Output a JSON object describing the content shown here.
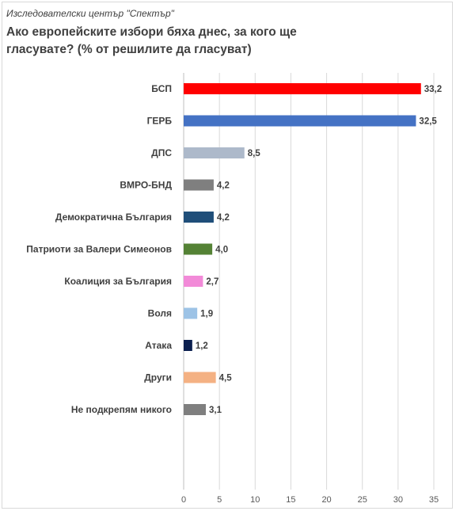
{
  "header": {
    "source": "Изследователски център \"Спектър\"",
    "title": "Ако европейските избори бяха днес, за кого ще гласувате? (% от решилите да гласуват)"
  },
  "chart_data": {
    "type": "bar",
    "orientation": "horizontal",
    "title": "Ако европейските избори бяха днес, за кого ще гласувате? (% от решилите да гласуват)",
    "categories": [
      "БСП",
      "ГЕРБ",
      "ДПС",
      "ВМРО-БНД",
      "Демократична България",
      "Патриоти за Валери Симеонов",
      "Коалиция за България",
      "Воля",
      "Атака",
      "Други",
      "Не подкрепям никого"
    ],
    "values": [
      33.2,
      32.5,
      8.5,
      4.2,
      4.2,
      4.0,
      2.7,
      1.9,
      1.2,
      4.5,
      3.1
    ],
    "value_labels": [
      "33,2",
      "32,5",
      "8,5",
      "4,2",
      "4,2",
      "4,0",
      "2,7",
      "1,9",
      "1,2",
      "4,5",
      "3,1"
    ],
    "colors": [
      "#ff0000",
      "#4472c4",
      "#adb9ca",
      "#7f7f7f",
      "#1f4e79",
      "#548235",
      "#f28ad8",
      "#9dc3e6",
      "#0b1f4f",
      "#f4b183",
      "#7f7f7f"
    ],
    "xlim": [
      0,
      35
    ],
    "x_ticks": [
      0,
      5,
      10,
      15,
      20,
      25,
      30,
      35
    ],
    "grid": true
  }
}
